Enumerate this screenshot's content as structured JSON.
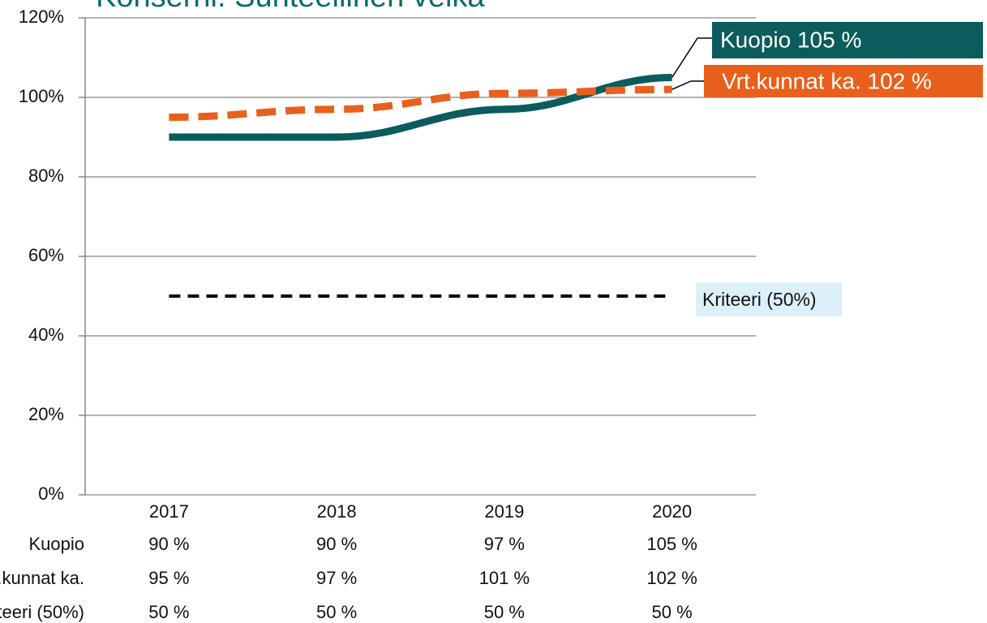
{
  "chart_data": {
    "type": "line",
    "title": "Konserni: Suhteellinen velka",
    "categories": [
      "2017",
      "2018",
      "2019",
      "2020"
    ],
    "series": [
      {
        "name": "Kuopio",
        "color": "#0b5c5c",
        "dash": false,
        "values": [
          90,
          90,
          97,
          105
        ],
        "value_labels": [
          "90 %",
          "90 %",
          "97 %",
          "105 %"
        ]
      },
      {
        "name": "Vrt.kunnat ka.",
        "color": "#e8601c",
        "dash": true,
        "values": [
          95,
          97,
          101,
          102
        ],
        "value_labels": [
          "95 %",
          "97 %",
          "101 %",
          "102 %"
        ]
      },
      {
        "name": "Kriteeri (50%)",
        "color": "#000000",
        "dash": true,
        "values": [
          50,
          50,
          50,
          50
        ],
        "value_labels": [
          "50 %",
          "50 %",
          "50 %",
          "50 %"
        ]
      }
    ],
    "annotations": [
      "Kuopio 105 %",
      "Vrt.kunnat ka. 102 %"
    ],
    "ylim": [
      0,
      120
    ],
    "yticks": [
      {
        "value": 0,
        "label": "0%"
      },
      {
        "value": 20,
        "label": "20%"
      },
      {
        "value": 40,
        "label": "40%"
      },
      {
        "value": 60,
        "label": "60%"
      },
      {
        "value": 80,
        "label": "80%"
      },
      {
        "value": 100,
        "label": "100%"
      },
      {
        "value": 120,
        "label": "120%"
      }
    ],
    "grid": true
  }
}
